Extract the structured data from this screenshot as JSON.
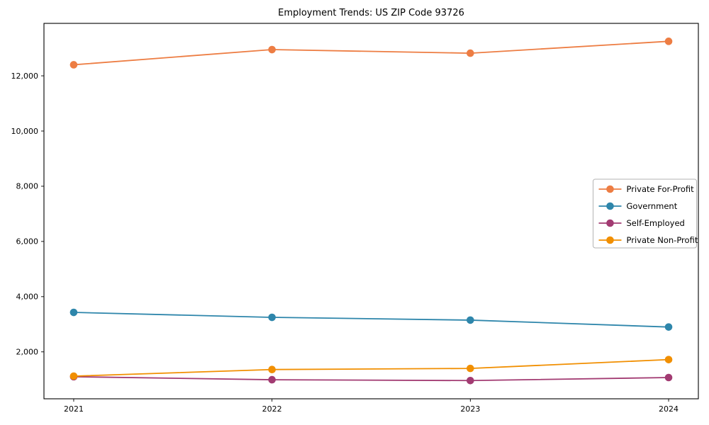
{
  "chart_data": {
    "type": "line",
    "title": "Employment Trends: US ZIP Code 93726",
    "xlabel": "",
    "ylabel": "",
    "x": [
      2021,
      2022,
      2023,
      2024
    ],
    "xtick_labels": [
      "2021",
      "2022",
      "2023",
      "2024"
    ],
    "yticks": [
      2000,
      4000,
      6000,
      8000,
      10000,
      12000
    ],
    "ytick_labels": [
      "2,000",
      "4,000",
      "6,000",
      "8,000",
      "10,000",
      "12,000"
    ],
    "xlim": [
      2020.85,
      2024.15
    ],
    "ylim": [
      300,
      13900
    ],
    "grid": false,
    "legend_position": "center-right",
    "series": [
      {
        "name": "Private For-Profit",
        "color": "#ED7D43",
        "values": [
          12400,
          12950,
          12820,
          13250
        ]
      },
      {
        "name": "Government",
        "color": "#2E86AB",
        "values": [
          3430,
          3250,
          3150,
          2900
        ]
      },
      {
        "name": "Self-Employed",
        "color": "#A23B72",
        "values": [
          1100,
          990,
          960,
          1070
        ]
      },
      {
        "name": "Private Non-Profit",
        "color": "#F18F01",
        "values": [
          1120,
          1360,
          1400,
          1720
        ]
      }
    ],
    "frame_color": "#000000",
    "background": "#ffffff"
  }
}
